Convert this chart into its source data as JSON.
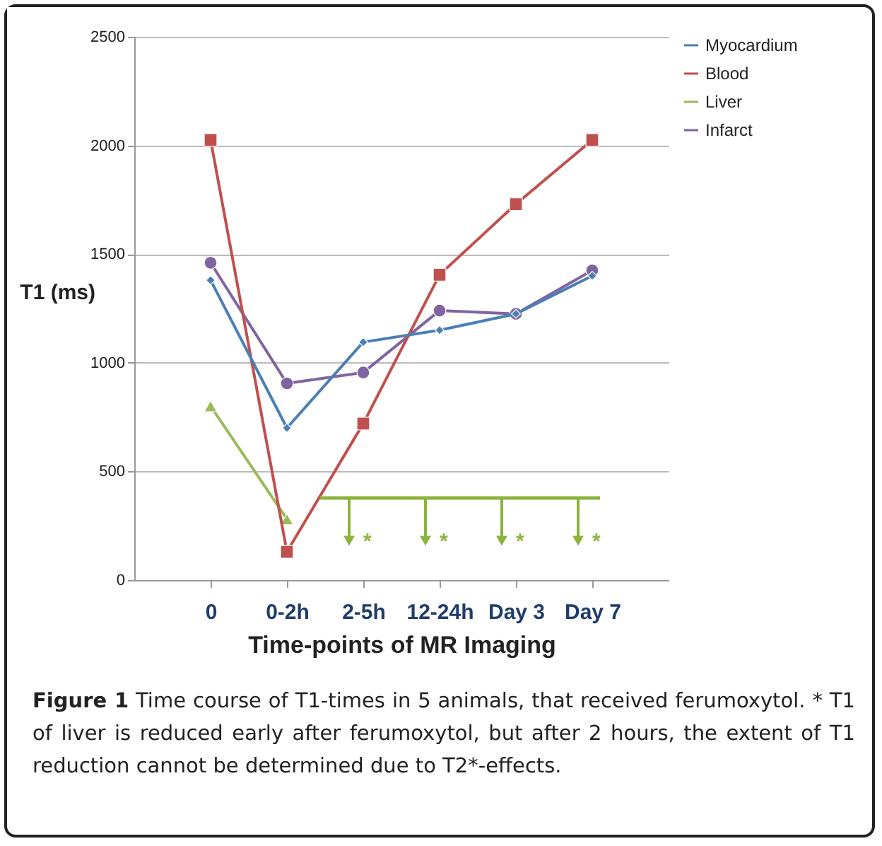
{
  "chart_data": {
    "type": "line",
    "xlabel": "Time-points of MR Imaging",
    "ylabel": "T1 (ms)",
    "categories": [
      "0",
      "0-2h",
      "2-5h",
      "12-24h",
      "Day 3",
      "Day 7"
    ],
    "series": [
      {
        "name": "Myocardium",
        "color": "#4a7fb5",
        "marker": "diamond",
        "values": [
          1380,
          700,
          1095,
          1150,
          1225,
          1400
        ]
      },
      {
        "name": "Blood",
        "color": "#c0504d",
        "marker": "square",
        "values": [
          2025,
          130,
          720,
          1405,
          1730,
          2025
        ]
      },
      {
        "name": "Liver",
        "color": "#9bbb59",
        "marker": "triangle",
        "values": [
          800,
          280,
          null,
          null,
          null,
          null
        ]
      },
      {
        "name": "Infarct",
        "color": "#8064a2",
        "marker": "circle",
        "values": [
          1460,
          905,
          955,
          1240,
          1225,
          1425
        ]
      }
    ],
    "ylim": [
      0,
      2500
    ],
    "yticks": [
      0,
      500,
      1000,
      1500,
      2000,
      2500
    ],
    "grid": "y",
    "legend": "right",
    "annotations": [
      "*",
      "*",
      "*",
      "*",
      "Figure 1 Time course of T1-times in 5 animals, that received ferumoxytol. * T1 of liver is reduced early after ferumoxytol, but after 2 hours, the extent of T1 reduction cannot be determined due to T2*-effects."
    ]
  }
}
